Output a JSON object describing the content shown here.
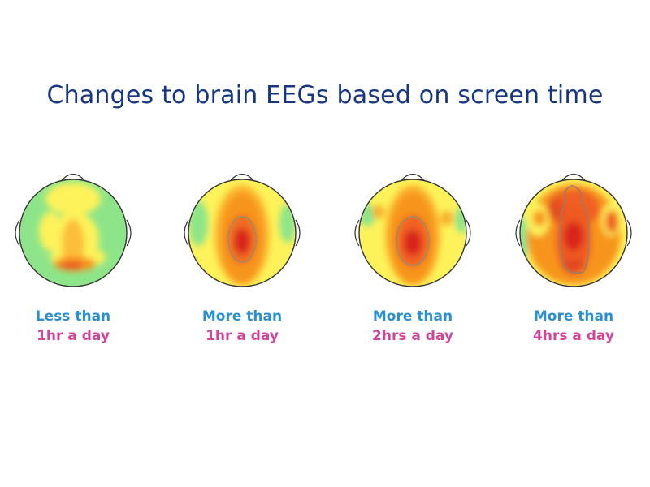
{
  "title": "Changes to brain EEGs based on screen time",
  "colors": {
    "title": "#16367f",
    "label_line1": "#2c8fcf",
    "label_line2": "#d0449a",
    "low_activity": "#8ee589",
    "mid_activity": "#fdf25a",
    "high_activity": "#f7941e",
    "peak_activity": "#d8261f"
  },
  "maps": [
    {
      "id": "less-1hr",
      "line1": "Less than",
      "line2": "1hr a day"
    },
    {
      "id": "more-1hr",
      "line1": "More than",
      "line2": "1hr a day"
    },
    {
      "id": "more-2hrs",
      "line1": "More than",
      "line2": "2hrs a day"
    },
    {
      "id": "more-4hrs",
      "line1": "More than",
      "line2": "4hrs a day"
    }
  ]
}
